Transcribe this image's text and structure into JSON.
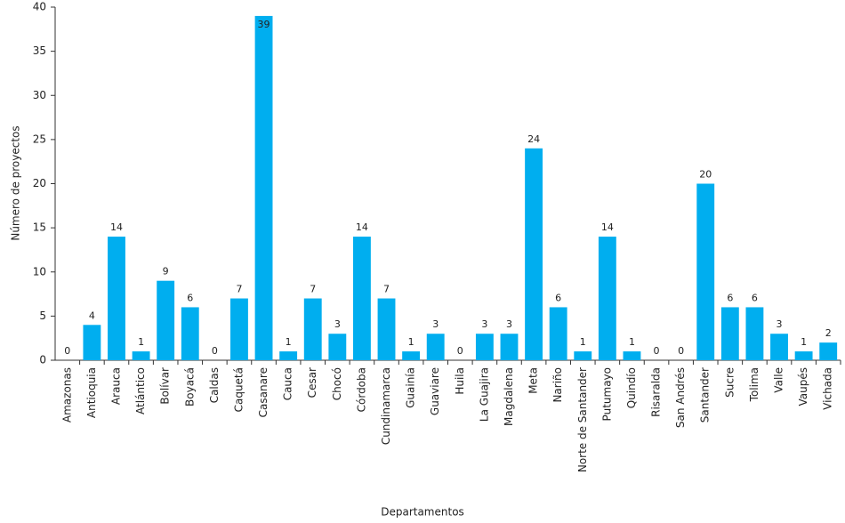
{
  "chart_data": {
    "type": "bar",
    "x_label": "Departamentos",
    "y_label": "Número de proyectos",
    "categories": [
      "Amazonas",
      "Antioquia",
      "Arauca",
      "Atlántico",
      "Bolívar",
      "Boyacá",
      "Caldas",
      "Caquetá",
      "Casanare",
      "Cauca",
      "Cesar",
      "Chocó",
      "Córdoba",
      "Cundinamarca",
      "Guainía",
      "Guaviare",
      "Huila",
      "La Guajira",
      "Magdalena",
      "Meta",
      "Nariño",
      "Norte de Santander",
      "Putumayo",
      "Quindío",
      "Risaralda",
      "San Andrés",
      "Santander",
      "Sucre",
      "Tolima",
      "Valle",
      "Vaupés",
      "Vichada"
    ],
    "values": [
      0,
      4,
      14,
      1,
      9,
      6,
      0,
      7,
      39,
      1,
      7,
      3,
      14,
      7,
      1,
      3,
      0,
      3,
      3,
      24,
      6,
      1,
      14,
      1,
      0,
      0,
      20,
      6,
      6,
      3,
      1,
      2
    ],
    "color": "#00aeef",
    "ylim": [
      0,
      40
    ],
    "yticks": [
      0,
      5,
      10,
      15,
      20,
      25,
      30,
      35,
      40
    ],
    "grid": false
  }
}
